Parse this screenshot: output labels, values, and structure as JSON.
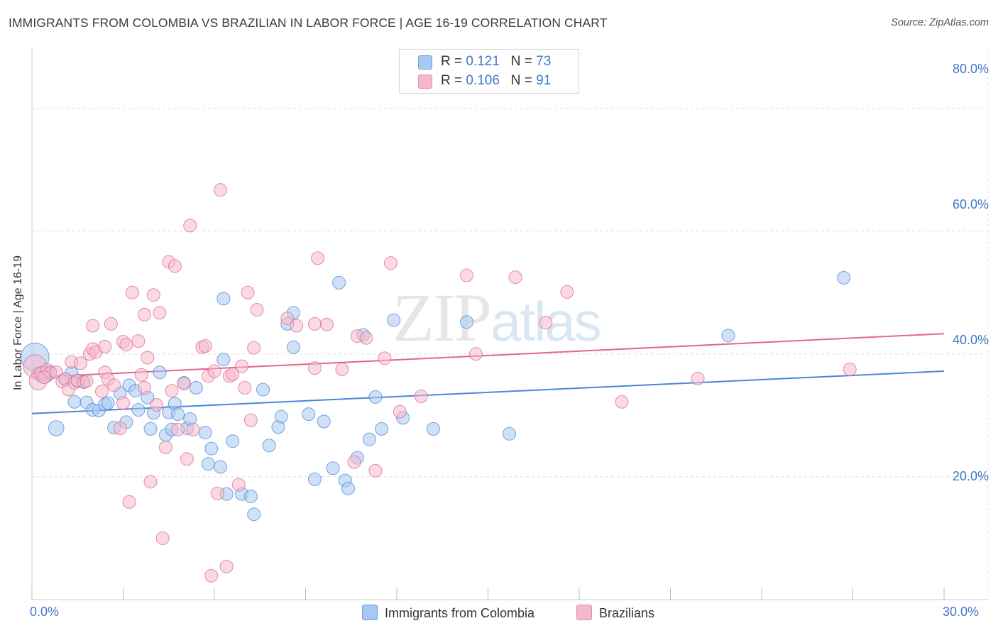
{
  "header": {
    "title": "IMMIGRANTS FROM COLOMBIA VS BRAZILIAN IN LABOR FORCE | AGE 16-19 CORRELATION CHART",
    "source": "Source: ZipAtlas.com"
  },
  "watermark": {
    "zip": "ZIP",
    "atlas": "atlas"
  },
  "legend": {
    "rows": [
      {
        "r_label": "R = ",
        "r_value": "0.121",
        "n_label": "N = ",
        "n_value": "73",
        "color": "#a8c8ef"
      },
      {
        "r_label": "R = ",
        "r_value": "0.106",
        "n_label": "N = ",
        "n_value": "91",
        "color": "#f5b9cc"
      }
    ]
  },
  "bottom_legend": {
    "items": [
      {
        "label": "Immigrants from Colombia",
        "color": "#a8c8ef"
      },
      {
        "label": "Brazilians",
        "color": "#f5b9cc"
      }
    ]
  },
  "axes": {
    "ylabel": "In Labor Force | Age 16-19",
    "yticks": [
      "80.0%",
      "60.0%",
      "40.0%",
      "20.0%"
    ],
    "xticks": [
      "0.0%",
      "30.0%"
    ]
  },
  "chart_data": {
    "type": "scatter",
    "title": "IMMIGRANTS FROM COLOMBIA VS BRAZILIAN IN LABOR FORCE | AGE 16-19 CORRELATION CHART",
    "xlabel": "",
    "ylabel": "In Labor Force | Age 16-19",
    "xlim": [
      0,
      30
    ],
    "ylim": [
      0,
      80
    ],
    "grid": true,
    "legend_position": "top-center",
    "series": [
      {
        "name": "Immigrants from Colombia",
        "color": "#4a86d8",
        "fill": "#a8c8ef",
        "stats": {
          "R": 0.121,
          "N": 73
        },
        "trend": [
          [
            0,
            30.3
          ],
          [
            30,
            37.2
          ]
        ],
        "points": [
          [
            0.1,
            39.5,
            2.2
          ],
          [
            0.3,
            36.7,
            1.2
          ],
          [
            0.4,
            37.0,
            1.0
          ],
          [
            0.5,
            36.5,
            1.0
          ],
          [
            0.6,
            37.1,
            1.0
          ],
          [
            0.8,
            27.9,
            1.2
          ],
          [
            1.1,
            35.9,
            1.0
          ],
          [
            1.3,
            36.9,
            1.0
          ],
          [
            1.4,
            32.2,
            1.0
          ],
          [
            1.5,
            35.6,
            1.0
          ],
          [
            1.7,
            35.5,
            1.0
          ],
          [
            1.8,
            32.1,
            1.0
          ],
          [
            2.0,
            30.9,
            1.0
          ],
          [
            2.2,
            30.8,
            1.0
          ],
          [
            2.4,
            31.8,
            1.0
          ],
          [
            2.5,
            32.0,
            1.0
          ],
          [
            2.7,
            28.0,
            1.0
          ],
          [
            2.9,
            33.6,
            1.0
          ],
          [
            3.1,
            28.9,
            1.0
          ],
          [
            3.2,
            34.9,
            1.0
          ],
          [
            3.4,
            34.0,
            1.0
          ],
          [
            3.5,
            30.9,
            1.0
          ],
          [
            3.8,
            32.9,
            1.0
          ],
          [
            3.9,
            27.8,
            1.0
          ],
          [
            4.0,
            30.4,
            1.0
          ],
          [
            4.2,
            37.0,
            1.0
          ],
          [
            4.4,
            26.8,
            1.0
          ],
          [
            4.5,
            30.5,
            1.0
          ],
          [
            4.6,
            27.7,
            1.0
          ],
          [
            4.7,
            31.9,
            1.0
          ],
          [
            4.8,
            30.2,
            1.0
          ],
          [
            5.0,
            35.3,
            1.0
          ],
          [
            5.1,
            27.9,
            1.0
          ],
          [
            5.2,
            29.4,
            1.0
          ],
          [
            5.4,
            34.5,
            1.0
          ],
          [
            5.7,
            27.2,
            1.0
          ],
          [
            5.8,
            22.1,
            1.0
          ],
          [
            5.9,
            24.6,
            1.0
          ],
          [
            6.2,
            21.6,
            1.0
          ],
          [
            6.3,
            39.1,
            1.0
          ],
          [
            6.4,
            17.2,
            1.0
          ],
          [
            6.6,
            25.8,
            1.0
          ],
          [
            6.3,
            49.0,
            1.0
          ],
          [
            6.9,
            17.2,
            1.0
          ],
          [
            7.2,
            16.8,
            1.0
          ],
          [
            7.3,
            13.9,
            1.0
          ],
          [
            7.6,
            34.2,
            1.0
          ],
          [
            7.8,
            25.1,
            1.0
          ],
          [
            8.1,
            28.1,
            1.0
          ],
          [
            8.2,
            29.8,
            1.0
          ],
          [
            8.4,
            44.9,
            1.0
          ],
          [
            8.6,
            46.7,
            1.0
          ],
          [
            8.6,
            41.1,
            1.0
          ],
          [
            9.1,
            30.2,
            1.0
          ],
          [
            9.3,
            19.6,
            1.0
          ],
          [
            9.6,
            29.0,
            1.0
          ],
          [
            9.9,
            21.4,
            1.0
          ],
          [
            10.1,
            51.6,
            1.0
          ],
          [
            10.3,
            19.4,
            1.0
          ],
          [
            10.4,
            18.1,
            1.0
          ],
          [
            10.7,
            23.1,
            1.0
          ],
          [
            11.1,
            26.1,
            1.0
          ],
          [
            11.3,
            33.0,
            1.0
          ],
          [
            11.5,
            27.8,
            1.0
          ],
          [
            11.9,
            45.5,
            1.0
          ],
          [
            12.2,
            29.6,
            1.0
          ],
          [
            13.2,
            27.8,
            1.0
          ],
          [
            14.3,
            45.2,
            1.0
          ],
          [
            15.7,
            27.0,
            1.0
          ],
          [
            22.9,
            43.0,
            1.0
          ],
          [
            10.9,
            43.1,
            1.0
          ],
          [
            26.7,
            52.4,
            1.0
          ],
          [
            0.2,
            36.8,
            1.0
          ]
        ]
      },
      {
        "name": "Brazilians",
        "color": "#e0678f",
        "fill": "#f5b9cc",
        "stats": {
          "R": 0.106,
          "N": 91
        },
        "trend": [
          [
            0,
            36.2
          ],
          [
            30,
            43.3
          ]
        ],
        "points": [
          [
            0.1,
            38.0,
            1.8
          ],
          [
            0.2,
            35.6,
            1.4
          ],
          [
            0.3,
            36.9,
            1.0
          ],
          [
            0.5,
            37.4,
            1.0
          ],
          [
            0.6,
            36.9,
            1.0
          ],
          [
            0.8,
            37.0,
            1.0
          ],
          [
            1.0,
            35.5,
            1.0
          ],
          [
            1.1,
            35.9,
            1.0
          ],
          [
            1.2,
            34.2,
            1.0
          ],
          [
            1.3,
            38.7,
            1.0
          ],
          [
            1.4,
            35.3,
            1.0
          ],
          [
            1.5,
            35.7,
            1.0
          ],
          [
            1.6,
            38.5,
            1.0
          ],
          [
            1.7,
            35.4,
            1.0
          ],
          [
            1.8,
            35.6,
            1.0
          ],
          [
            1.9,
            40.0,
            1.0
          ],
          [
            2.0,
            40.8,
            1.0
          ],
          [
            2.0,
            44.6,
            1.0
          ],
          [
            2.1,
            40.3,
            1.0
          ],
          [
            2.3,
            33.9,
            1.0
          ],
          [
            2.4,
            37.0,
            1.0
          ],
          [
            2.4,
            41.2,
            1.0
          ],
          [
            2.5,
            35.9,
            1.0
          ],
          [
            2.6,
            44.9,
            1.0
          ],
          [
            2.7,
            34.9,
            1.0
          ],
          [
            2.9,
            27.9,
            1.0
          ],
          [
            3.0,
            32.0,
            1.0
          ],
          [
            3.0,
            42.0,
            1.0
          ],
          [
            3.1,
            41.5,
            1.0
          ],
          [
            3.2,
            15.9,
            1.0
          ],
          [
            3.3,
            50.0,
            1.0
          ],
          [
            3.5,
            42.1,
            1.0
          ],
          [
            3.6,
            36.6,
            1.0
          ],
          [
            3.7,
            34.5,
            1.0
          ],
          [
            3.7,
            46.4,
            1.0
          ],
          [
            3.8,
            39.4,
            1.0
          ],
          [
            3.9,
            19.2,
            1.0
          ],
          [
            4.0,
            49.6,
            1.0
          ],
          [
            4.1,
            31.7,
            1.0
          ],
          [
            4.2,
            46.7,
            1.0
          ],
          [
            4.3,
            10.0,
            1.0
          ],
          [
            4.4,
            24.8,
            1.0
          ],
          [
            4.5,
            55.0,
            1.0
          ],
          [
            4.6,
            34.0,
            1.0
          ],
          [
            4.7,
            54.3,
            1.0
          ],
          [
            4.8,
            27.7,
            1.0
          ],
          [
            5.0,
            35.2,
            1.0
          ],
          [
            5.1,
            22.9,
            1.0
          ],
          [
            5.2,
            60.9,
            1.0
          ],
          [
            5.3,
            27.7,
            1.0
          ],
          [
            5.6,
            41.1,
            1.0
          ],
          [
            5.7,
            41.3,
            1.0
          ],
          [
            5.8,
            36.4,
            1.0
          ],
          [
            5.9,
            3.9,
            1.0
          ],
          [
            6.0,
            37.2,
            1.0
          ],
          [
            6.1,
            17.3,
            1.0
          ],
          [
            6.2,
            66.7,
            1.0
          ],
          [
            6.4,
            5.4,
            1.0
          ],
          [
            6.5,
            36.4,
            1.0
          ],
          [
            6.6,
            36.7,
            1.0
          ],
          [
            6.8,
            18.7,
            1.0
          ],
          [
            6.9,
            38.0,
            1.0
          ],
          [
            7.0,
            34.5,
            1.0
          ],
          [
            7.1,
            50.0,
            1.0
          ],
          [
            7.2,
            29.2,
            1.0
          ],
          [
            7.3,
            41.0,
            1.0
          ],
          [
            7.4,
            47.2,
            1.0
          ],
          [
            8.4,
            45.8,
            1.0
          ],
          [
            8.7,
            44.6,
            1.0
          ],
          [
            9.3,
            37.7,
            1.0
          ],
          [
            9.3,
            44.9,
            1.0
          ],
          [
            9.4,
            55.6,
            1.0
          ],
          [
            9.7,
            44.8,
            1.0
          ],
          [
            10.2,
            37.5,
            1.0
          ],
          [
            10.6,
            22.4,
            1.0
          ],
          [
            10.7,
            42.9,
            1.0
          ],
          [
            11.0,
            42.6,
            1.0
          ],
          [
            11.3,
            21.0,
            1.0
          ],
          [
            11.6,
            39.3,
            1.0
          ],
          [
            11.8,
            54.8,
            1.0
          ],
          [
            12.1,
            30.6,
            1.0
          ],
          [
            12.8,
            33.1,
            1.0
          ],
          [
            14.3,
            52.8,
            1.0
          ],
          [
            14.6,
            40.0,
            1.0
          ],
          [
            15.9,
            52.5,
            1.0
          ],
          [
            16.9,
            45.1,
            1.0
          ],
          [
            17.6,
            50.1,
            1.0
          ],
          [
            19.4,
            32.2,
            1.0
          ],
          [
            21.9,
            36.0,
            1.0
          ],
          [
            26.9,
            37.5,
            1.0
          ],
          [
            0.4,
            36.2,
            1.0
          ]
        ]
      }
    ]
  }
}
